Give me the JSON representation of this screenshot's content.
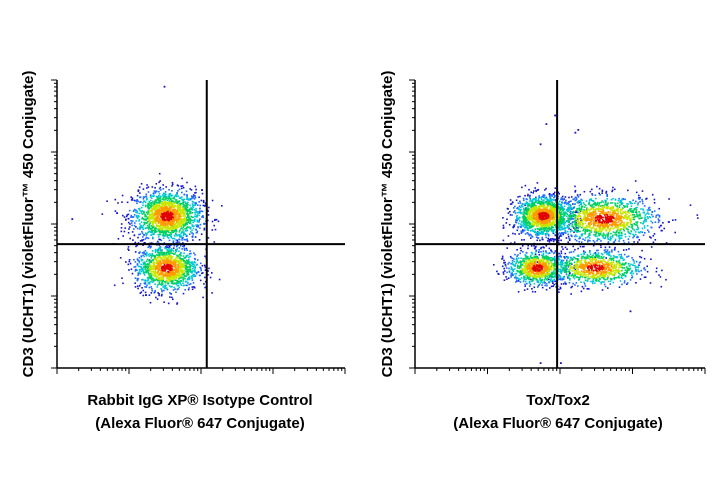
{
  "chart_data": [
    {
      "type": "scatter",
      "title": "",
      "xlabel_line1": "Rabbit IgG XP® Isotype Control",
      "xlabel_line2": "(Alexa Fluor® 647 Conjugate)",
      "ylabel": "CD3 (UCHT1) (violetFluor™ 450 Conjugate)",
      "x_scale": "log",
      "y_scale": "log",
      "quadrant_gate": {
        "x": 0.52,
        "y": 0.43
      },
      "populations": [
        {
          "name": "",
          "cx": 0.38,
          "cy": 0.53,
          "sx": 0.06,
          "sy": 0.045,
          "n": 1600
        },
        {
          "name": "",
          "cx": 0.38,
          "cy": 0.35,
          "sx": 0.055,
          "sy": 0.04,
          "n": 1200
        }
      ],
      "outliers": [
        [
          0.37,
          0.98
        ],
        [
          0.05,
          0.52
        ],
        [
          0.28,
          0.62
        ]
      ],
      "density_colormap": [
        "#1414c8",
        "#1e6bff",
        "#00c8d2",
        "#00d060",
        "#c8e600",
        "#ff9a00",
        "#e00000"
      ],
      "grid": false,
      "legend": "none"
    },
    {
      "type": "scatter",
      "title": "",
      "xlabel_line1": "Tox/Tox2",
      "xlabel_line2": "(Alexa Fluor® 647 Conjugate)",
      "ylabel": "CD3 (UCHT1) (violetFluor™ 450 Conjugate)",
      "x_scale": "log",
      "y_scale": "log",
      "quadrant_gate": {
        "x": 0.49,
        "y": 0.43
      },
      "populations": [
        {
          "name": "",
          "cx": 0.44,
          "cy": 0.53,
          "sx": 0.05,
          "sy": 0.035,
          "n": 1400
        },
        {
          "name": "",
          "cx": 0.65,
          "cy": 0.52,
          "sx": 0.09,
          "sy": 0.04,
          "n": 1300
        },
        {
          "name": "",
          "cx": 0.42,
          "cy": 0.35,
          "sx": 0.05,
          "sy": 0.03,
          "n": 900
        },
        {
          "name": "",
          "cx": 0.62,
          "cy": 0.35,
          "sx": 0.08,
          "sy": 0.03,
          "n": 900
        }
      ],
      "outliers": [
        [
          0.45,
          0.85
        ],
        [
          0.48,
          0.88
        ],
        [
          0.55,
          0.82
        ],
        [
          0.56,
          0.83
        ],
        [
          0.43,
          0.78
        ],
        [
          0.74,
          0.2
        ],
        [
          0.5,
          0.02
        ],
        [
          0.43,
          0.02
        ]
      ],
      "density_colormap": [
        "#1414c8",
        "#1e6bff",
        "#00c8d2",
        "#00d060",
        "#c8e600",
        "#ff9a00",
        "#e00000"
      ],
      "grid": false,
      "legend": "none"
    }
  ]
}
